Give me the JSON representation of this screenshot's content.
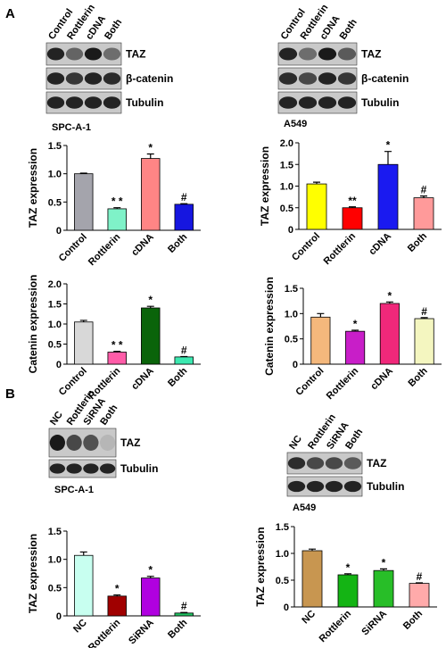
{
  "panels": [
    "A",
    "B"
  ],
  "blots": [
    {
      "lanes": [
        "Control",
        "Rottlerin",
        "cDNA",
        "Both"
      ],
      "rows": [
        "TAZ",
        "β-catenin",
        "Tubulin"
      ],
      "cell_line": "SPC-A-1"
    },
    {
      "lanes": [
        "Control",
        "Rottlerin",
        "cDNA",
        "Both"
      ],
      "rows": [
        "TAZ",
        "β-catenin",
        "Tubulin"
      ],
      "cell_line": "A549"
    },
    {
      "lanes": [
        "NC",
        "Rottlerin",
        "SiRNA",
        "Both"
      ],
      "rows": [
        "TAZ",
        "Tubulin"
      ],
      "cell_line": "SPC-A-1"
    },
    {
      "lanes": [
        "NC",
        "Rottlerin",
        "SiRNA",
        "Both"
      ],
      "rows": [
        "TAZ",
        "Tubulin"
      ],
      "cell_line": "A549"
    }
  ],
  "chart_data": [
    {
      "type": "bar",
      "ylabel": "TAZ expression",
      "categories": [
        "Control",
        "Rottlerin",
        "cDNA",
        "Both"
      ],
      "values": [
        1.0,
        0.38,
        1.27,
        0.46
      ],
      "errors": [
        0.01,
        0.02,
        0.08,
        0.01
      ],
      "colors": [
        "#a4a4ac",
        "#7ff2c8",
        "#ff8585",
        "#1616e0"
      ],
      "annotations": [
        null,
        "* *",
        "*",
        "#"
      ],
      "ylim": [
        0,
        1.5
      ],
      "yticks": [
        0,
        0.5,
        {
          "value": 1,
          "label": "1.0"
        },
        1.5
      ]
    },
    {
      "type": "bar",
      "ylabel": "TAZ expression",
      "categories": [
        "Control",
        "Rottlerin",
        "cDNA",
        "Both"
      ],
      "values": [
        1.05,
        0.5,
        1.5,
        0.73
      ],
      "errors": [
        0.04,
        0.02,
        0.3,
        0.04
      ],
      "colors": [
        "#ffff00",
        "#ff0000",
        "#1a1af0",
        "#ff9a9a"
      ],
      "annotations": [
        null,
        "**",
        "*",
        "#"
      ],
      "ylim": [
        0,
        2
      ],
      "yticks": [
        0,
        0.5,
        {
          "value": 1,
          "label": "1.0"
        },
        1.5,
        {
          "value": 2,
          "label": "2.0"
        }
      ]
    },
    {
      "type": "bar",
      "ylabel": "Catenin expression",
      "categories": [
        "Control",
        "Rottlerin",
        "cDNA",
        "Both"
      ],
      "values": [
        1.05,
        0.3,
        1.4,
        0.18
      ],
      "errors": [
        0.04,
        0.02,
        0.04,
        0.01
      ],
      "colors": [
        "#d8d8d8",
        "#ff5ca8",
        "#0a640a",
        "#3ce8b0"
      ],
      "annotations": [
        null,
        "* *",
        "*",
        "#"
      ],
      "ylim": [
        0,
        2
      ],
      "yticks": [
        0,
        0.5,
        {
          "value": 1,
          "label": "1.0"
        },
        1.5,
        {
          "value": 2,
          "label": "2.0"
        }
      ]
    },
    {
      "type": "bar",
      "ylabel": "Catenin expression",
      "categories": [
        "Control",
        "Rottlerin",
        "cDNA",
        "Both"
      ],
      "values": [
        0.93,
        0.65,
        1.2,
        0.9
      ],
      "errors": [
        0.07,
        0.02,
        0.03,
        0.02
      ],
      "colors": [
        "#f4b87c",
        "#c81ec8",
        "#f0287a",
        "#f4f6c0"
      ],
      "annotations": [
        null,
        "*",
        "*",
        "#"
      ],
      "ylim": [
        0,
        1.5
      ],
      "yticks": [
        0,
        0.5,
        {
          "value": 1,
          "label": "1.0"
        },
        1.5
      ]
    },
    {
      "type": "bar",
      "ylabel": "TAZ expression",
      "categories": [
        "NC",
        "Rottlerin",
        "SiRNA",
        "Both"
      ],
      "values": [
        1.07,
        0.35,
        0.67,
        0.05
      ],
      "errors": [
        0.06,
        0.02,
        0.03,
        0.01
      ],
      "colors": [
        "#c8fff0",
        "#a00000",
        "#b000e0",
        "#20c060"
      ],
      "annotations": [
        null,
        "*",
        "*",
        "#"
      ],
      "ylim": [
        0,
        1.5
      ],
      "yticks": [
        0,
        0.5,
        {
          "value": 1,
          "label": "1.0"
        },
        1.5
      ]
    },
    {
      "type": "bar",
      "ylabel": "TAZ expression",
      "categories": [
        "NC",
        "Rottlerin",
        "SiRNA",
        "Both"
      ],
      "values": [
        1.05,
        0.6,
        0.68,
        0.44
      ],
      "errors": [
        0.03,
        0.02,
        0.03,
        0.01
      ],
      "colors": [
        "#c89650",
        "#14b414",
        "#28be28",
        "#ffaaaa"
      ],
      "annotations": [
        null,
        "*",
        "*",
        "#"
      ],
      "ylim": [
        0,
        1.5
      ],
      "yticks": [
        0,
        0.5,
        {
          "value": 1,
          "label": "1.0"
        },
        1.5
      ]
    }
  ]
}
